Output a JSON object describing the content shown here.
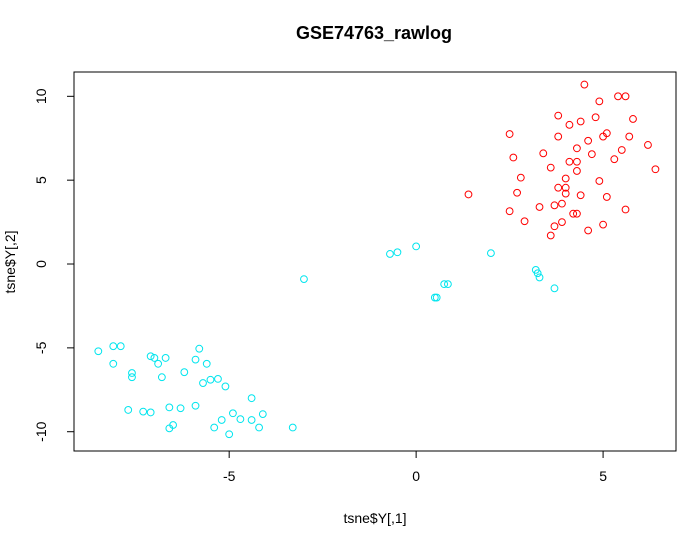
{
  "chart_data": {
    "type": "scatter",
    "title": "GSE74763_rawlog",
    "xlabel": "tsne$Y[,1]",
    "ylabel": "tsne$Y[,2]",
    "xlim": [
      -9.15,
      6.95
    ],
    "ylim": [
      -11.15,
      11.45
    ],
    "x_ticks": [
      -5,
      0,
      5
    ],
    "x_tick_labels": [
      "-5",
      "0",
      "5"
    ],
    "y_ticks": [
      -10,
      -5,
      0,
      5,
      10
    ],
    "y_tick_labels": [
      "-10",
      "-5",
      "0",
      "5",
      "10"
    ],
    "grid": false,
    "legend": "none",
    "series": [
      {
        "color": "#ff0000",
        "marker": "open-circle",
        "points": [
          [
            4.5,
            10.7
          ],
          [
            5.4,
            10.0
          ],
          [
            5.6,
            10.0
          ],
          [
            4.9,
            9.7
          ],
          [
            3.8,
            8.85
          ],
          [
            4.8,
            8.75
          ],
          [
            5.8,
            8.65
          ],
          [
            4.4,
            8.5
          ],
          [
            4.1,
            8.3
          ],
          [
            5.1,
            7.8
          ],
          [
            2.5,
            7.75
          ],
          [
            3.8,
            7.6
          ],
          [
            5.0,
            7.6
          ],
          [
            5.7,
            7.6
          ],
          [
            4.6,
            7.35
          ],
          [
            6.2,
            7.1
          ],
          [
            4.3,
            6.9
          ],
          [
            5.5,
            6.8
          ],
          [
            3.4,
            6.6
          ],
          [
            4.7,
            6.55
          ],
          [
            2.6,
            6.35
          ],
          [
            5.3,
            6.25
          ],
          [
            4.1,
            6.1
          ],
          [
            4.3,
            6.1
          ],
          [
            3.6,
            5.75
          ],
          [
            4.3,
            5.55
          ],
          [
            6.4,
            5.65
          ],
          [
            2.8,
            5.15
          ],
          [
            4.0,
            5.1
          ],
          [
            4.9,
            4.95
          ],
          [
            3.8,
            4.55
          ],
          [
            4.0,
            4.55
          ],
          [
            2.7,
            4.25
          ],
          [
            1.4,
            4.15
          ],
          [
            4.0,
            4.2
          ],
          [
            4.4,
            4.1
          ],
          [
            5.1,
            4.0
          ],
          [
            3.7,
            3.5
          ],
          [
            3.9,
            3.6
          ],
          [
            3.3,
            3.4
          ],
          [
            2.5,
            3.15
          ],
          [
            5.6,
            3.25
          ],
          [
            4.2,
            3.0
          ],
          [
            4.3,
            3.0
          ],
          [
            2.9,
            2.55
          ],
          [
            3.9,
            2.5
          ],
          [
            3.7,
            2.25
          ],
          [
            5.0,
            2.35
          ],
          [
            4.6,
            2.0
          ],
          [
            3.6,
            1.7
          ]
        ]
      },
      {
        "color": "#00e5ee",
        "marker": "open-circle",
        "points": [
          [
            0.0,
            1.05
          ],
          [
            -0.5,
            0.7
          ],
          [
            -0.7,
            0.6
          ],
          [
            2.0,
            0.65
          ],
          [
            -3.0,
            -0.9
          ],
          [
            3.2,
            -0.35
          ],
          [
            3.25,
            -0.55
          ],
          [
            3.3,
            -0.8
          ],
          [
            0.75,
            -1.2
          ],
          [
            0.85,
            -1.2
          ],
          [
            3.7,
            -1.45
          ],
          [
            0.5,
            -2.0
          ],
          [
            0.55,
            -2.0
          ],
          [
            -8.5,
            -5.2
          ],
          [
            -8.1,
            -4.9
          ],
          [
            -7.9,
            -4.9
          ],
          [
            -5.8,
            -5.05
          ],
          [
            -7.1,
            -5.5
          ],
          [
            -7.0,
            -5.6
          ],
          [
            -6.7,
            -5.6
          ],
          [
            -5.9,
            -5.7
          ],
          [
            -8.1,
            -5.95
          ],
          [
            -6.9,
            -5.95
          ],
          [
            -5.6,
            -5.95
          ],
          [
            -7.6,
            -6.5
          ],
          [
            -6.2,
            -6.45
          ],
          [
            -7.6,
            -6.75
          ],
          [
            -6.8,
            -6.75
          ],
          [
            -5.3,
            -6.85
          ],
          [
            -5.5,
            -6.9
          ],
          [
            -5.7,
            -7.1
          ],
          [
            -5.1,
            -7.3
          ],
          [
            -4.4,
            -8.0
          ],
          [
            -5.9,
            -8.45
          ],
          [
            -6.6,
            -8.55
          ],
          [
            -6.3,
            -8.6
          ],
          [
            -7.7,
            -8.7
          ],
          [
            -7.3,
            -8.8
          ],
          [
            -7.1,
            -8.85
          ],
          [
            -4.9,
            -8.9
          ],
          [
            -4.1,
            -8.95
          ],
          [
            -4.7,
            -9.25
          ],
          [
            -5.2,
            -9.3
          ],
          [
            -4.4,
            -9.3
          ],
          [
            -6.5,
            -9.6
          ],
          [
            -6.6,
            -9.8
          ],
          [
            -5.4,
            -9.75
          ],
          [
            -4.2,
            -9.75
          ],
          [
            -3.3,
            -9.75
          ],
          [
            -5.0,
            -10.15
          ]
        ]
      }
    ]
  }
}
